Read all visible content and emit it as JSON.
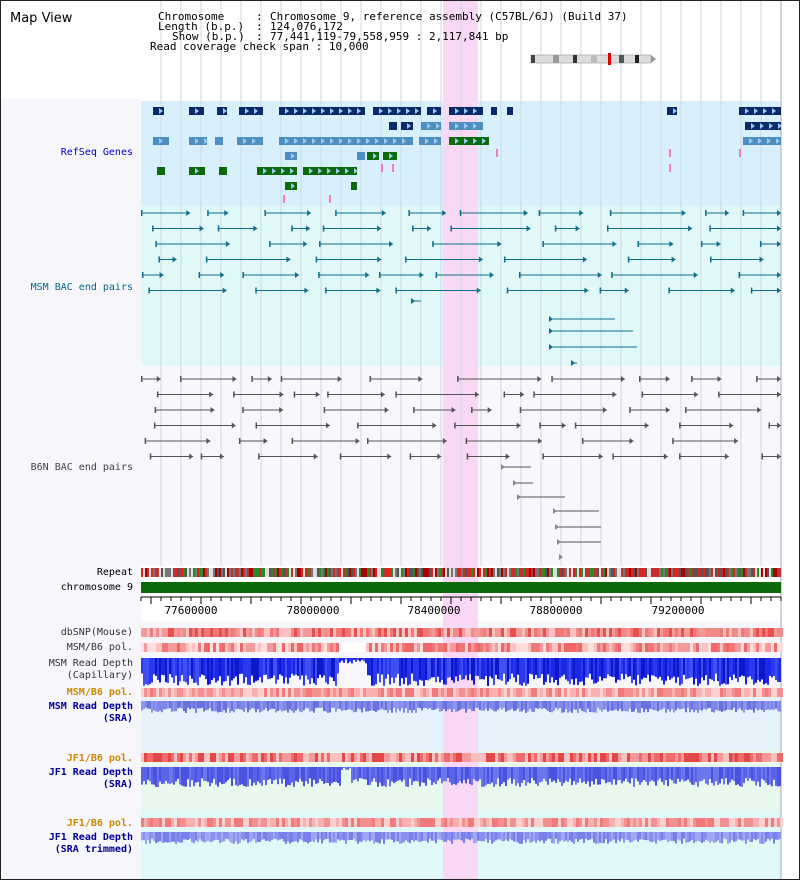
{
  "panel": {
    "title": "Map View",
    "chromosome_label": "Chromosome",
    "chromosome_value": "Chromosome 9, reference assembly (C57BL/6J) (Build 37)",
    "length_label": "Length (b.p.)",
    "length_value": "124,076,172",
    "show_label": "Show (b.p.)",
    "show_value": "77,441,119-79,558,959 : 2,117,841 bp",
    "coverage_label": "Read coverage check span",
    "coverage_value": "10,000"
  },
  "tracks": {
    "refseq": "RefSeq Genes",
    "msm_bac": "MSM BAC end pairs",
    "b6n_bac": "B6N BAC end pairs",
    "repeat": "Repeat",
    "chromosome": "chromosome 9",
    "dbsnp": "dbSNP(Mouse)",
    "msm_b6_pol_1": "MSM/B6 pol.",
    "msm_depth_cap_1": "MSM Read Depth",
    "msm_depth_cap_2": "(Capillary)",
    "msm_b6_pol_2": "MSM/B6 pol.",
    "msm_depth_sra_1": "MSM Read Depth",
    "msm_depth_sra_2": "(SRA)",
    "jf1_b6_pol_1": "JF1/B6 pol.",
    "jf1_depth_sra_1": "JF1 Read Depth",
    "jf1_depth_sra_2": "(SRA)",
    "jf1_b6_pol_2": "JF1/B6 pol.",
    "jf1_depth_trim_1": "JF1 Read Depth",
    "jf1_depth_trim_2": "(SRA trimmed)"
  },
  "axis": {
    "ticks": [
      "77600000",
      "78000000",
      "78400000",
      "78800000",
      "79200000"
    ]
  },
  "colors": {
    "refseq_label": "#0000cc",
    "msm_label": "#006688",
    "b6n_label": "#444444",
    "pol_orange": "#cc8800",
    "depth_blue": "#000099",
    "highlight": "#f8d8f4"
  }
}
